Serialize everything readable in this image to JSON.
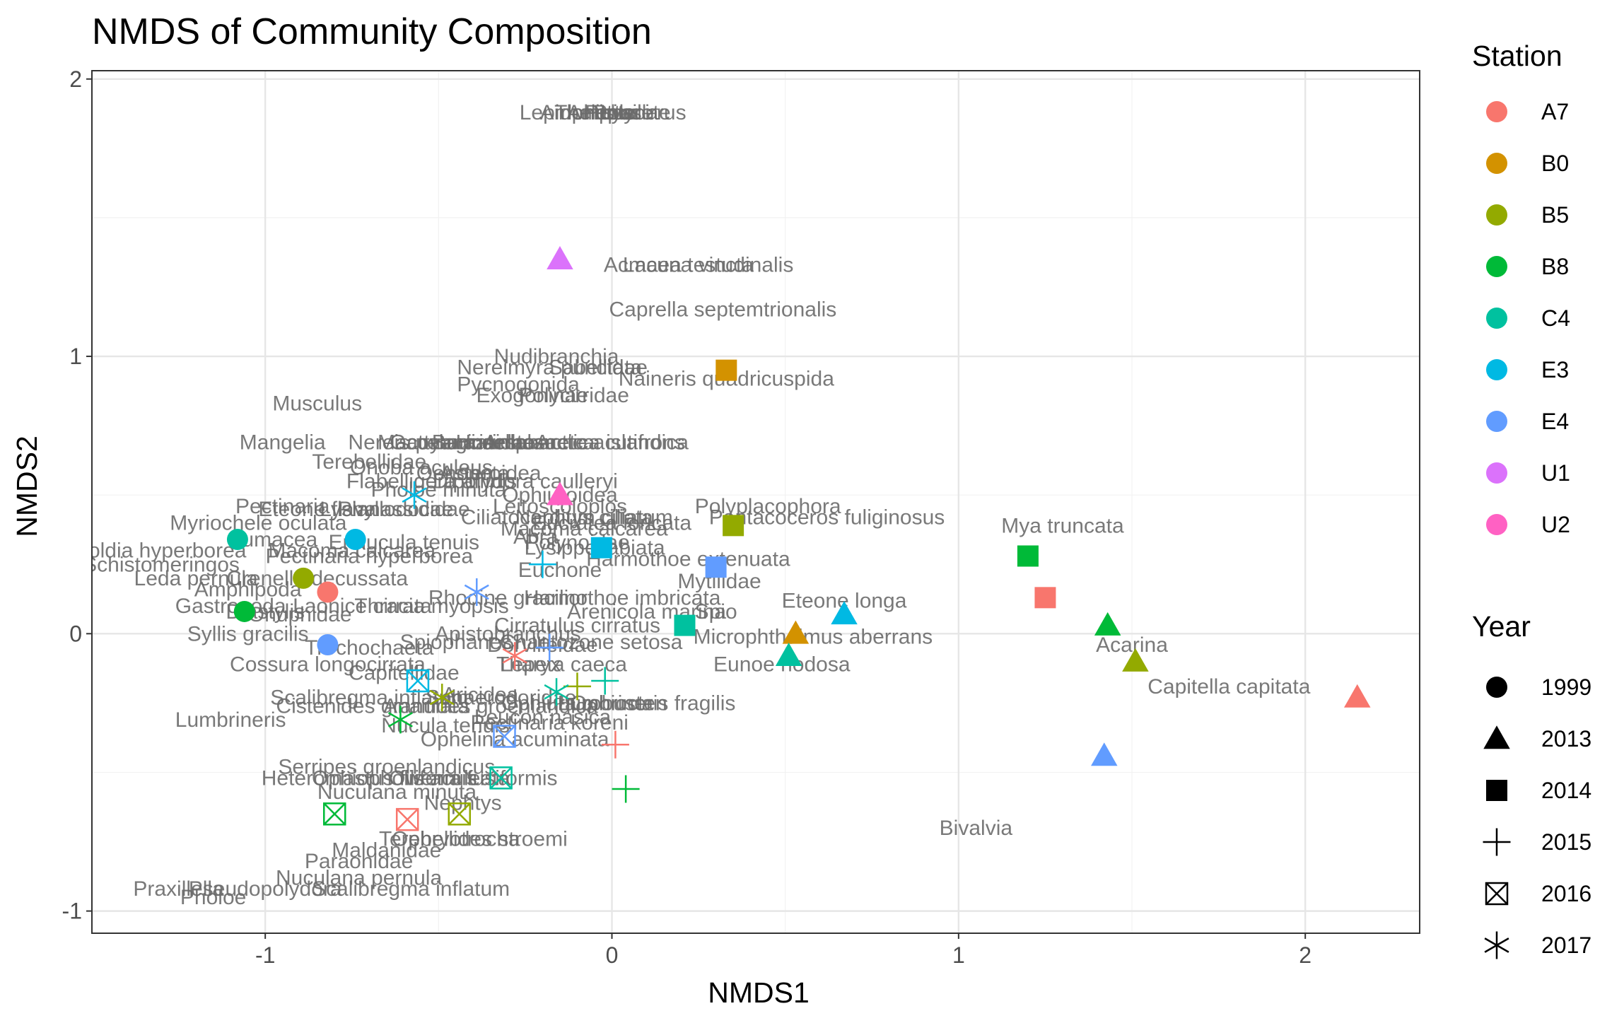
{
  "chart_data": {
    "type": "scatter",
    "title": "NMDS of Community Composition",
    "xlabel": "NMDS1",
    "ylabel": "NMDS2",
    "xlim": [
      -1.5,
      2.33
    ],
    "ylim": [
      -1.08,
      2.03
    ],
    "xticks": [
      -1,
      0,
      1,
      2
    ],
    "yticks": [
      -1,
      0,
      1,
      2
    ],
    "grid": true,
    "legend_position": "right",
    "legends": {
      "color": {
        "title": "Station",
        "entries": [
          {
            "label": "A7",
            "color": "#F8766D"
          },
          {
            "label": "B0",
            "color": "#D39200"
          },
          {
            "label": "B5",
            "color": "#93AA00"
          },
          {
            "label": "B8",
            "color": "#00BA38"
          },
          {
            "label": "C4",
            "color": "#00C19F"
          },
          {
            "label": "E3",
            "color": "#00B9E3"
          },
          {
            "label": "E4",
            "color": "#619CFF"
          },
          {
            "label": "U1",
            "color": "#DB72FB"
          },
          {
            "label": "U2",
            "color": "#FF61C3"
          }
        ]
      },
      "shape": {
        "title": "Year",
        "entries": [
          {
            "label": "1999",
            "shape": "circle"
          },
          {
            "label": "2013",
            "shape": "triangle"
          },
          {
            "label": "2014",
            "shape": "square"
          },
          {
            "label": "2015",
            "shape": "plus"
          },
          {
            "label": "2016",
            "shape": "boxcross"
          },
          {
            "label": "2017",
            "shape": "asterisk"
          }
        ]
      }
    },
    "samples": [
      {
        "x": 2.15,
        "y": -0.23,
        "station": "A7",
        "year": "2013"
      },
      {
        "x": 1.43,
        "y": 0.03,
        "station": "B8",
        "year": "2013"
      },
      {
        "x": 1.51,
        "y": -0.1,
        "station": "B5",
        "year": "2013"
      },
      {
        "x": 1.42,
        "y": -0.44,
        "station": "E4",
        "year": "2013"
      },
      {
        "x": 0.67,
        "y": 0.07,
        "station": "E3",
        "year": "2013"
      },
      {
        "x": 0.53,
        "y": 0.0,
        "station": "B0",
        "year": "2013"
      },
      {
        "x": 0.51,
        "y": -0.08,
        "station": "C4",
        "year": "2013"
      },
      {
        "x": -0.15,
        "y": 1.35,
        "station": "U1",
        "year": "2013"
      },
      {
        "x": -0.15,
        "y": 0.5,
        "station": "U2",
        "year": "2013"
      },
      {
        "x": 1.2,
        "y": 0.28,
        "station": "B8",
        "year": "2014"
      },
      {
        "x": 1.25,
        "y": 0.13,
        "station": "A7",
        "year": "2014"
      },
      {
        "x": 0.33,
        "y": 0.95,
        "station": "B0",
        "year": "2014"
      },
      {
        "x": 0.35,
        "y": 0.39,
        "station": "B5",
        "year": "2014"
      },
      {
        "x": 0.3,
        "y": 0.24,
        "station": "E4",
        "year": "2014"
      },
      {
        "x": -0.03,
        "y": 0.31,
        "station": "E3",
        "year": "2014"
      },
      {
        "x": 0.21,
        "y": 0.03,
        "station": "C4",
        "year": "2014"
      },
      {
        "x": -1.08,
        "y": 0.34,
        "station": "C4",
        "year": "1999"
      },
      {
        "x": -0.74,
        "y": 0.34,
        "station": "E3",
        "year": "1999"
      },
      {
        "x": -0.89,
        "y": 0.2,
        "station": "B5",
        "year": "1999"
      },
      {
        "x": -0.82,
        "y": 0.15,
        "station": "A7",
        "year": "1999"
      },
      {
        "x": -1.06,
        "y": 0.08,
        "station": "B8",
        "year": "1999"
      },
      {
        "x": -0.82,
        "y": -0.04,
        "station": "E4",
        "year": "1999"
      },
      {
        "x": 0.01,
        "y": -0.4,
        "station": "A7",
        "year": "2015"
      },
      {
        "x": 0.04,
        "y": -0.56,
        "station": "B8",
        "year": "2015"
      },
      {
        "x": -0.02,
        "y": -0.17,
        "station": "C4",
        "year": "2015"
      },
      {
        "x": -0.1,
        "y": -0.19,
        "station": "B5",
        "year": "2015"
      },
      {
        "x": -0.2,
        "y": 0.25,
        "station": "E3",
        "year": "2015"
      },
      {
        "x": -0.18,
        "y": -0.05,
        "station": "E4",
        "year": "2015"
      },
      {
        "x": -0.8,
        "y": -0.65,
        "station": "B8",
        "year": "2016"
      },
      {
        "x": -0.59,
        "y": -0.67,
        "station": "A7",
        "year": "2016"
      },
      {
        "x": -0.44,
        "y": -0.65,
        "station": "B5",
        "year": "2016"
      },
      {
        "x": -0.32,
        "y": -0.52,
        "station": "C4",
        "year": "2016"
      },
      {
        "x": -0.31,
        "y": -0.37,
        "station": "E4",
        "year": "2016"
      },
      {
        "x": -0.56,
        "y": -0.17,
        "station": "E3",
        "year": "2016"
      },
      {
        "x": -0.57,
        "y": 0.5,
        "station": "E3",
        "year": "2017"
      },
      {
        "x": -0.39,
        "y": 0.15,
        "station": "E4",
        "year": "2017"
      },
      {
        "x": -0.28,
        "y": -0.08,
        "station": "A7",
        "year": "2017"
      },
      {
        "x": -0.16,
        "y": -0.21,
        "station": "C4",
        "year": "2017"
      },
      {
        "x": -0.49,
        "y": -0.23,
        "station": "B5",
        "year": "2017"
      },
      {
        "x": -0.61,
        "y": -0.31,
        "station": "B8",
        "year": "2017"
      }
    ],
    "species_labels": [
      {
        "text": "Acmaea testudinalis",
        "x": 0.25,
        "y": 1.33
      },
      {
        "text": "Lacuna vincta",
        "x": 0.22,
        "y": 1.33
      },
      {
        "text": "Caprella septemtrionalis",
        "x": 0.32,
        "y": 1.17
      },
      {
        "text": "Nudibranchia",
        "x": -0.16,
        "y": 1.0
      },
      {
        "text": "Nereimyra punctata",
        "x": -0.18,
        "y": 0.96
      },
      {
        "text": "Sabellidae",
        "x": -0.04,
        "y": 0.96
      },
      {
        "text": "Naineris quadricuspida",
        "x": 0.33,
        "y": 0.92
      },
      {
        "text": "Pycnogonida",
        "x": -0.27,
        "y": 0.9
      },
      {
        "text": "Exogoninae",
        "x": -0.23,
        "y": 0.86
      },
      {
        "text": "Polycirridae",
        "x": -0.11,
        "y": 0.86
      },
      {
        "text": "Musculus",
        "x": -0.85,
        "y": 0.83
      },
      {
        "text": "Mya truncata",
        "x": 1.3,
        "y": 0.39
      },
      {
        "text": "Polyplacophora",
        "x": 0.45,
        "y": 0.46
      },
      {
        "text": "Pantacoceros fuliginosus",
        "x": 0.62,
        "y": 0.42
      },
      {
        "text": "Mytilidae",
        "x": 0.31,
        "y": 0.19
      },
      {
        "text": "Eteone longa",
        "x": 0.67,
        "y": 0.12
      },
      {
        "text": "Microphthalmus aberrans",
        "x": 0.58,
        "y": -0.01
      },
      {
        "text": "Eunoe nodosa",
        "x": 0.49,
        "y": -0.11
      },
      {
        "text": "Acarina",
        "x": 1.5,
        "y": -0.04
      },
      {
        "text": "Capitella capitata",
        "x": 1.78,
        "y": -0.19
      },
      {
        "text": "Bivalvia",
        "x": 1.05,
        "y": -0.7
      },
      {
        "text": "Harmothoe extenuata",
        "x": 0.22,
        "y": 0.27
      },
      {
        "text": "Harmothoe imbricata",
        "x": 0.03,
        "y": 0.13
      },
      {
        "text": "Arenicola marina",
        "x": 0.1,
        "y": 0.08
      },
      {
        "text": "Spio",
        "x": 0.3,
        "y": 0.08
      },
      {
        "text": "Ciliatocardium ciliatum",
        "x": -0.13,
        "y": 0.42
      },
      {
        "text": "Nephtys ciliata",
        "x": -0.08,
        "y": 0.42
      },
      {
        "text": "Macoma calcarea",
        "x": -0.08,
        "y": 0.38
      },
      {
        "text": "Ophiuroidea",
        "x": -0.15,
        "y": 0.5
      },
      {
        "text": "Asteroidea",
        "x": -0.35,
        "y": 0.58
      },
      {
        "text": "Oenopota",
        "x": -0.43,
        "y": 0.58
      },
      {
        "text": "Flabelligera affinis",
        "x": -0.52,
        "y": 0.55
      },
      {
        "text": "Dipolydora caulleryi",
        "x": -0.25,
        "y": 0.55
      },
      {
        "text": "Myriochele oculata",
        "x": -1.02,
        "y": 0.4
      },
      {
        "text": "Cumacea",
        "x": -0.98,
        "y": 0.34
      },
      {
        "text": "Yoldia hyperborea",
        "x": -1.3,
        "y": 0.3
      },
      {
        "text": "Schistomeringos",
        "x": -1.3,
        "y": 0.25
      },
      {
        "text": "Leda pernula",
        "x": -1.2,
        "y": 0.2
      },
      {
        "text": "Amphipoda",
        "x": -1.05,
        "y": 0.16
      },
      {
        "text": "Macoma calcarea",
        "x": -0.75,
        "y": 0.3
      },
      {
        "text": "Pectinaria hyperborea",
        "x": -0.7,
        "y": 0.28
      },
      {
        "text": "Lumbrineris",
        "x": -1.1,
        "y": -0.31
      },
      {
        "text": "Cossura longocirrata",
        "x": -0.82,
        "y": -0.11
      },
      {
        "text": "Scalibregma inflatum",
        "x": -0.7,
        "y": -0.23
      },
      {
        "text": "Cistenides granulata",
        "x": -0.69,
        "y": -0.26
      },
      {
        "text": "Nucula tenuis",
        "x": -0.48,
        "y": -0.33
      },
      {
        "text": "Pectinaria koreni",
        "x": -0.18,
        "y": -0.32
      },
      {
        "text": "Ophelina acuminata",
        "x": -0.28,
        "y": -0.38
      },
      {
        "text": "Serripes groenlandicus",
        "x": -0.65,
        "y": -0.48
      },
      {
        "text": "Heteromastus filiformis",
        "x": -0.7,
        "y": -0.52
      },
      {
        "text": "Owenia fusiformis",
        "x": -0.4,
        "y": -0.52
      },
      {
        "text": "Nuculana minuta",
        "x": -0.62,
        "y": -0.57
      },
      {
        "text": "Nephtys",
        "x": -0.43,
        "y": -0.61
      },
      {
        "text": "Ophryotrocha",
        "x": -0.45,
        "y": -0.74
      },
      {
        "text": "Terebellides stroemi",
        "x": -0.4,
        "y": -0.74
      },
      {
        "text": "Maldanidae",
        "x": -0.65,
        "y": -0.78
      },
      {
        "text": "Paraonidae",
        "x": -0.73,
        "y": -0.82
      },
      {
        "text": "Nuculana pernula",
        "x": -0.73,
        "y": -0.88
      },
      {
        "text": "Scalibregma inflatum",
        "x": -0.58,
        "y": -0.92
      },
      {
        "text": "Pseudopolydora",
        "x": -1.0,
        "y": -0.92
      },
      {
        "text": "Praxillella",
        "x": -1.25,
        "y": -0.92
      },
      {
        "text": "Pholoe",
        "x": -1.15,
        "y": -0.95
      },
      {
        "text": "Cirratulus cirratus",
        "x": -0.1,
        "y": 0.03
      },
      {
        "text": "Apistobranchus",
        "x": -0.3,
        "y": 0.0
      },
      {
        "text": "Spiophanes",
        "x": -0.45,
        "y": -0.03
      },
      {
        "text": "Trochochaeta",
        "x": -0.7,
        "y": -0.05
      },
      {
        "text": "Syllis gracilis",
        "x": -1.05,
        "y": 0.0
      },
      {
        "text": "Euchone",
        "x": -0.15,
        "y": 0.23
      },
      {
        "text": "Mangelia",
        "x": -0.95,
        "y": 0.69
      },
      {
        "text": "Nereis pelagica",
        "x": -0.55,
        "y": 0.69
      },
      {
        "text": "Gattyana cirrhosa",
        "x": -0.4,
        "y": 0.69
      },
      {
        "text": "Onoba aculeus",
        "x": -0.55,
        "y": 0.6
      },
      {
        "text": "Hiatella arctica",
        "x": -0.25,
        "y": 0.69
      },
      {
        "text": "Ampharete acutifrons",
        "x": -0.08,
        "y": 0.69
      },
      {
        "text": "Rhodine gracilior",
        "x": -0.3,
        "y": 0.13
      },
      {
        "text": "Chaetozone setosa",
        "x": -0.06,
        "y": -0.03
      },
      {
        "text": "Tharyx",
        "x": -0.24,
        "y": -0.11
      },
      {
        "text": "Lepeta caeca",
        "x": -0.14,
        "y": -0.11
      },
      {
        "text": "Sphaerodoridae",
        "x": -0.32,
        "y": -0.23
      },
      {
        "text": "Ophiura robusta",
        "x": -0.1,
        "y": -0.25
      },
      {
        "text": "Ophiocten",
        "x": 0.02,
        "y": -0.25
      },
      {
        "text": "Pholoe minuta",
        "x": -0.5,
        "y": 0.52
      },
      {
        "text": "Terebellidae",
        "x": -0.7,
        "y": 0.62
      },
      {
        "text": "Polynoidae",
        "x": -0.1,
        "y": 0.33
      },
      {
        "text": "Leitoscoloplos",
        "x": -0.15,
        "y": 0.46
      },
      {
        "text": "Phyllodocidae",
        "x": -0.6,
        "y": 0.45
      },
      {
        "text": "Lysianassidae",
        "x": -0.65,
        "y": 0.45
      },
      {
        "text": "Eteone flava",
        "x": -0.85,
        "y": 0.45
      },
      {
        "text": "Aricidea",
        "x": -0.38,
        "y": -0.22
      },
      {
        "text": "Onuphidae",
        "x": -0.9,
        "y": 0.07
      },
      {
        "text": "Pectinaria",
        "x": -0.95,
        "y": 0.46
      },
      {
        "text": "Capitellidae",
        "x": -0.6,
        "y": -0.14
      },
      {
        "text": "Lumbrineris fragilis",
        "x": 0.1,
        "y": -0.25
      },
      {
        "text": "Eucratea loricata",
        "x": 0.0,
        "y": 0.4
      },
      {
        "text": "Abra",
        "x": -0.22,
        "y": 0.35
      },
      {
        "text": "Dorvilleidae",
        "x": -0.2,
        "y": -0.04
      },
      {
        "text": "Lysippe labiata",
        "x": -0.05,
        "y": 0.31
      },
      {
        "text": "Ennucula tenuis",
        "x": -0.6,
        "y": 0.33
      },
      {
        "text": "Macoma moesta",
        "x": -0.45,
        "y": 0.69
      },
      {
        "text": "Arctica islandica",
        "x": 0.0,
        "y": 0.69
      },
      {
        "text": "Buccinidae",
        "x": -0.37,
        "y": 0.69
      },
      {
        "text": "Ophiopholis aculeata",
        "x": -0.58,
        "y": -0.52
      },
      {
        "text": "Leucon nasica",
        "x": -0.2,
        "y": -0.3
      },
      {
        "text": "Crenella decussata",
        "x": -0.85,
        "y": 0.2
      },
      {
        "text": "Laonice cirrata",
        "x": -0.72,
        "y": 0.1
      },
      {
        "text": "Anaitides groenlandica",
        "x": -0.35,
        "y": -0.26
      },
      {
        "text": "Thracia myopsis",
        "x": -0.52,
        "y": 0.1
      },
      {
        "text": "Diastylis",
        "x": -1.0,
        "y": 0.08
      },
      {
        "text": "Gastropoda",
        "x": -1.1,
        "y": 0.1
      }
    ],
    "top_label_cluster_y": 1.88
  }
}
